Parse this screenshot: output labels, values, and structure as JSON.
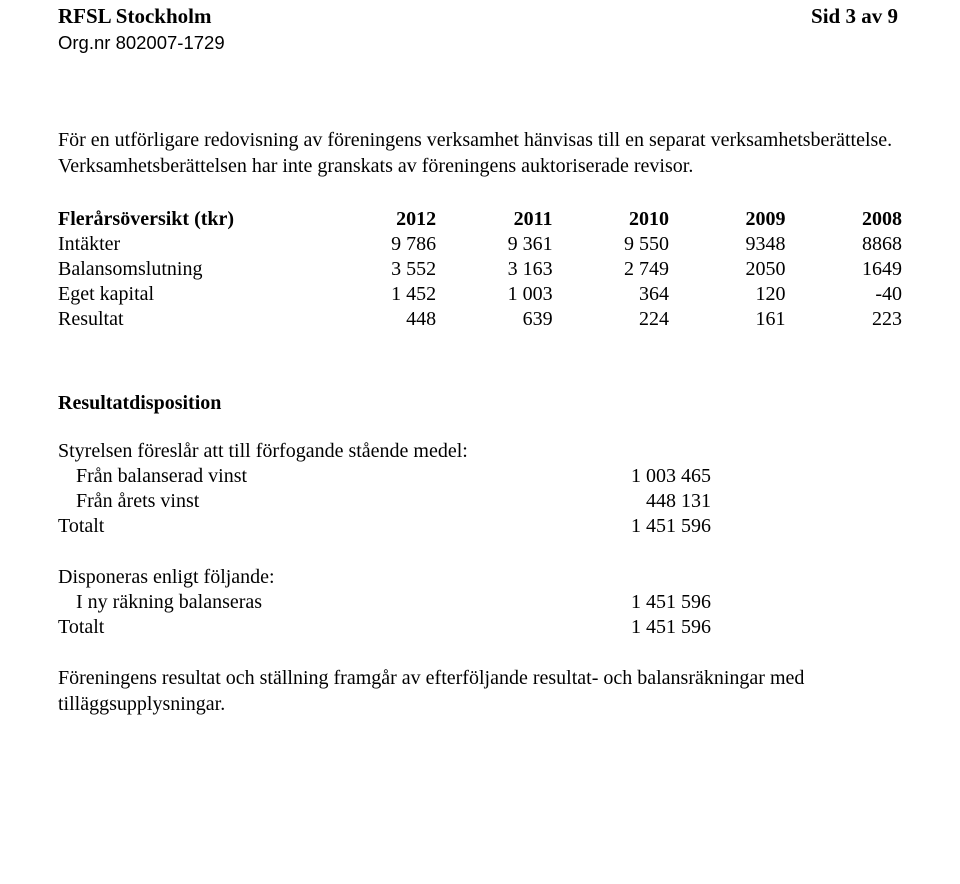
{
  "header": {
    "org_name": "RFSL Stockholm",
    "org_nr": "Org.nr 802007-1729",
    "page_ref": "Sid 3 av 9"
  },
  "paragraphs": {
    "intro": "För en utförligare redovisning av föreningens verksamhet hänvisas till en separat verksamhetsberättelse. Verksamhetsberättelsen har inte granskats av föreningens auktoriserade revisor."
  },
  "overview": {
    "heading": "Flerårsöversikt (tkr)",
    "years": [
      "2012",
      "2011",
      "2010",
      "2009",
      "2008"
    ],
    "rows": [
      {
        "label": "Intäkter",
        "values": [
          "9 786",
          "9 361",
          "9 550",
          "9348",
          "8868"
        ]
      },
      {
        "label": "Balansomslutning",
        "values": [
          "3 552",
          "3 163",
          "2 749",
          "2050",
          "1649"
        ]
      },
      {
        "label": "Eget kapital",
        "values": [
          "1 452",
          "1 003",
          "364",
          "120",
          "-40"
        ]
      },
      {
        "label": "Resultat",
        "values": [
          "448",
          "639",
          "224",
          "161",
          "223"
        ]
      }
    ]
  },
  "disposition": {
    "heading": "Resultatdisposition",
    "proposal_intro": "Styrelsen föreslår att till förfogande stående medel:",
    "proposal_rows": [
      {
        "label": "Från balanserad vinst",
        "value": "1 003 465"
      },
      {
        "label": "Från årets vinst",
        "value": "448 131"
      }
    ],
    "proposal_total_label": "Totalt",
    "proposal_total_value": "1 451 596",
    "dispose_intro": "Disponeras enligt följande:",
    "dispose_rows": [
      {
        "label": "I ny räkning balanseras",
        "value": "1 451 596"
      }
    ],
    "dispose_total_label": "Totalt",
    "dispose_total_value": "1 451 596"
  },
  "closing": {
    "text": "Föreningens resultat och ställning framgår av efterföljande resultat- och balansräkningar med tilläggsupplysningar."
  },
  "col_widths": {
    "label": "31%",
    "year": "13.8%"
  }
}
